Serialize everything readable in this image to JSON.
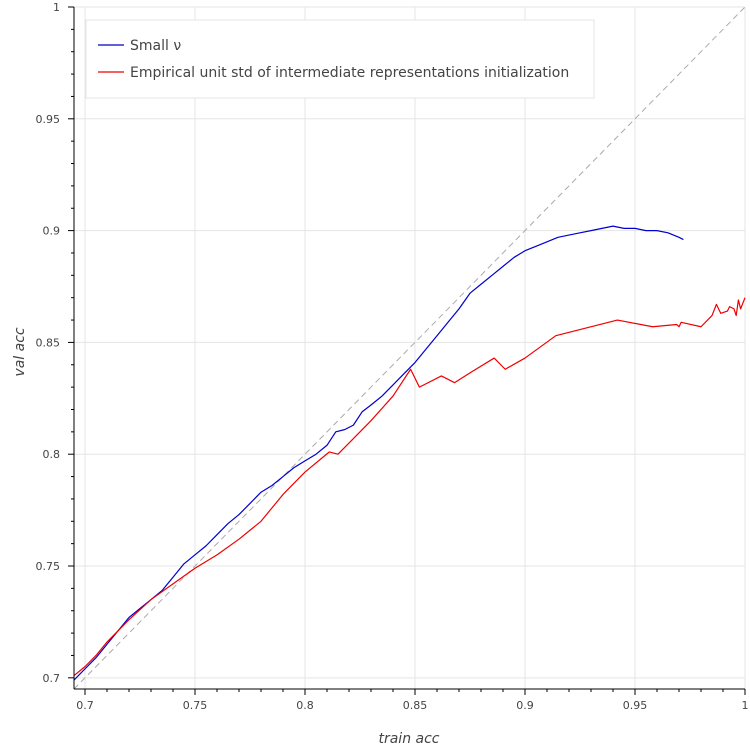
{
  "chart_data": {
    "type": "line",
    "xlabel": "train acc",
    "ylabel": "val acc",
    "xlim": [
      0.695,
      1.0
    ],
    "ylim": [
      0.695,
      1.0
    ],
    "x_ticks": [
      0.7,
      0.75,
      0.8,
      0.85,
      0.9,
      0.95,
      1
    ],
    "x_tick_labels": [
      "0.7",
      "0.75",
      "0.8",
      "0.85",
      "0.9",
      "0.95",
      "1"
    ],
    "y_ticks": [
      0.7,
      0.75,
      0.8,
      0.85,
      0.9,
      0.95,
      1
    ],
    "y_tick_labels": [
      "0.7",
      "0.75",
      "0.8",
      "0.85",
      "0.9",
      "0.95",
      "1"
    ],
    "grid": true,
    "legend_position": "top-left",
    "reference_line": {
      "style": "dashed",
      "color": "#aaaaaa",
      "from": [
        0.695,
        0.695
      ],
      "to": [
        1.0,
        1.0
      ]
    },
    "series": [
      {
        "name": "Small ν",
        "color": "#0000cc",
        "points": [
          [
            0.695,
            0.699
          ],
          [
            0.7,
            0.704
          ],
          [
            0.705,
            0.709
          ],
          [
            0.71,
            0.715
          ],
          [
            0.715,
            0.721
          ],
          [
            0.72,
            0.727
          ],
          [
            0.725,
            0.731
          ],
          [
            0.73,
            0.735
          ],
          [
            0.735,
            0.739
          ],
          [
            0.74,
            0.745
          ],
          [
            0.745,
            0.751
          ],
          [
            0.75,
            0.755
          ],
          [
            0.755,
            0.759
          ],
          [
            0.76,
            0.764
          ],
          [
            0.765,
            0.769
          ],
          [
            0.77,
            0.773
          ],
          [
            0.775,
            0.778
          ],
          [
            0.78,
            0.783
          ],
          [
            0.785,
            0.786
          ],
          [
            0.79,
            0.79
          ],
          [
            0.795,
            0.794
          ],
          [
            0.8,
            0.797
          ],
          [
            0.805,
            0.8
          ],
          [
            0.81,
            0.804
          ],
          [
            0.814,
            0.81
          ],
          [
            0.818,
            0.811
          ],
          [
            0.822,
            0.813
          ],
          [
            0.826,
            0.819
          ],
          [
            0.83,
            0.822
          ],
          [
            0.835,
            0.826
          ],
          [
            0.84,
            0.831
          ],
          [
            0.845,
            0.836
          ],
          [
            0.85,
            0.841
          ],
          [
            0.855,
            0.847
          ],
          [
            0.86,
            0.853
          ],
          [
            0.865,
            0.859
          ],
          [
            0.87,
            0.865
          ],
          [
            0.875,
            0.872
          ],
          [
            0.88,
            0.876
          ],
          [
            0.885,
            0.88
          ],
          [
            0.89,
            0.884
          ],
          [
            0.895,
            0.888
          ],
          [
            0.9,
            0.891
          ],
          [
            0.905,
            0.893
          ],
          [
            0.91,
            0.895
          ],
          [
            0.915,
            0.897
          ],
          [
            0.92,
            0.898
          ],
          [
            0.925,
            0.899
          ],
          [
            0.93,
            0.9
          ],
          [
            0.935,
            0.901
          ],
          [
            0.94,
            0.902
          ],
          [
            0.945,
            0.901
          ],
          [
            0.95,
            0.901
          ],
          [
            0.955,
            0.9
          ],
          [
            0.96,
            0.9
          ],
          [
            0.965,
            0.899
          ],
          [
            0.97,
            0.897
          ],
          [
            0.972,
            0.896
          ]
        ]
      },
      {
        "name": "Empirical unit std of intermediate representations initialization",
        "color": "#ee0000",
        "points": [
          [
            0.695,
            0.701
          ],
          [
            0.7,
            0.705
          ],
          [
            0.705,
            0.71
          ],
          [
            0.71,
            0.716
          ],
          [
            0.72,
            0.726
          ],
          [
            0.73,
            0.735
          ],
          [
            0.74,
            0.742
          ],
          [
            0.75,
            0.749
          ],
          [
            0.76,
            0.755
          ],
          [
            0.77,
            0.762
          ],
          [
            0.78,
            0.77
          ],
          [
            0.79,
            0.782
          ],
          [
            0.8,
            0.792
          ],
          [
            0.811,
            0.801
          ],
          [
            0.815,
            0.8
          ],
          [
            0.82,
            0.805
          ],
          [
            0.83,
            0.815
          ],
          [
            0.84,
            0.826
          ],
          [
            0.848,
            0.838
          ],
          [
            0.852,
            0.83
          ],
          [
            0.862,
            0.835
          ],
          [
            0.868,
            0.832
          ],
          [
            0.876,
            0.837
          ],
          [
            0.886,
            0.843
          ],
          [
            0.891,
            0.838
          ],
          [
            0.9,
            0.843
          ],
          [
            0.914,
            0.853
          ],
          [
            0.942,
            0.86
          ],
          [
            0.958,
            0.857
          ],
          [
            0.969,
            0.858
          ],
          [
            0.97,
            0.857
          ],
          [
            0.971,
            0.859
          ],
          [
            0.98,
            0.857
          ],
          [
            0.985,
            0.862
          ],
          [
            0.987,
            0.867
          ],
          [
            0.989,
            0.863
          ],
          [
            0.992,
            0.864
          ],
          [
            0.993,
            0.866
          ],
          [
            0.995,
            0.865
          ],
          [
            0.996,
            0.862
          ],
          [
            0.997,
            0.869
          ],
          [
            0.998,
            0.865
          ],
          [
            1.0,
            0.87
          ]
        ]
      }
    ]
  }
}
